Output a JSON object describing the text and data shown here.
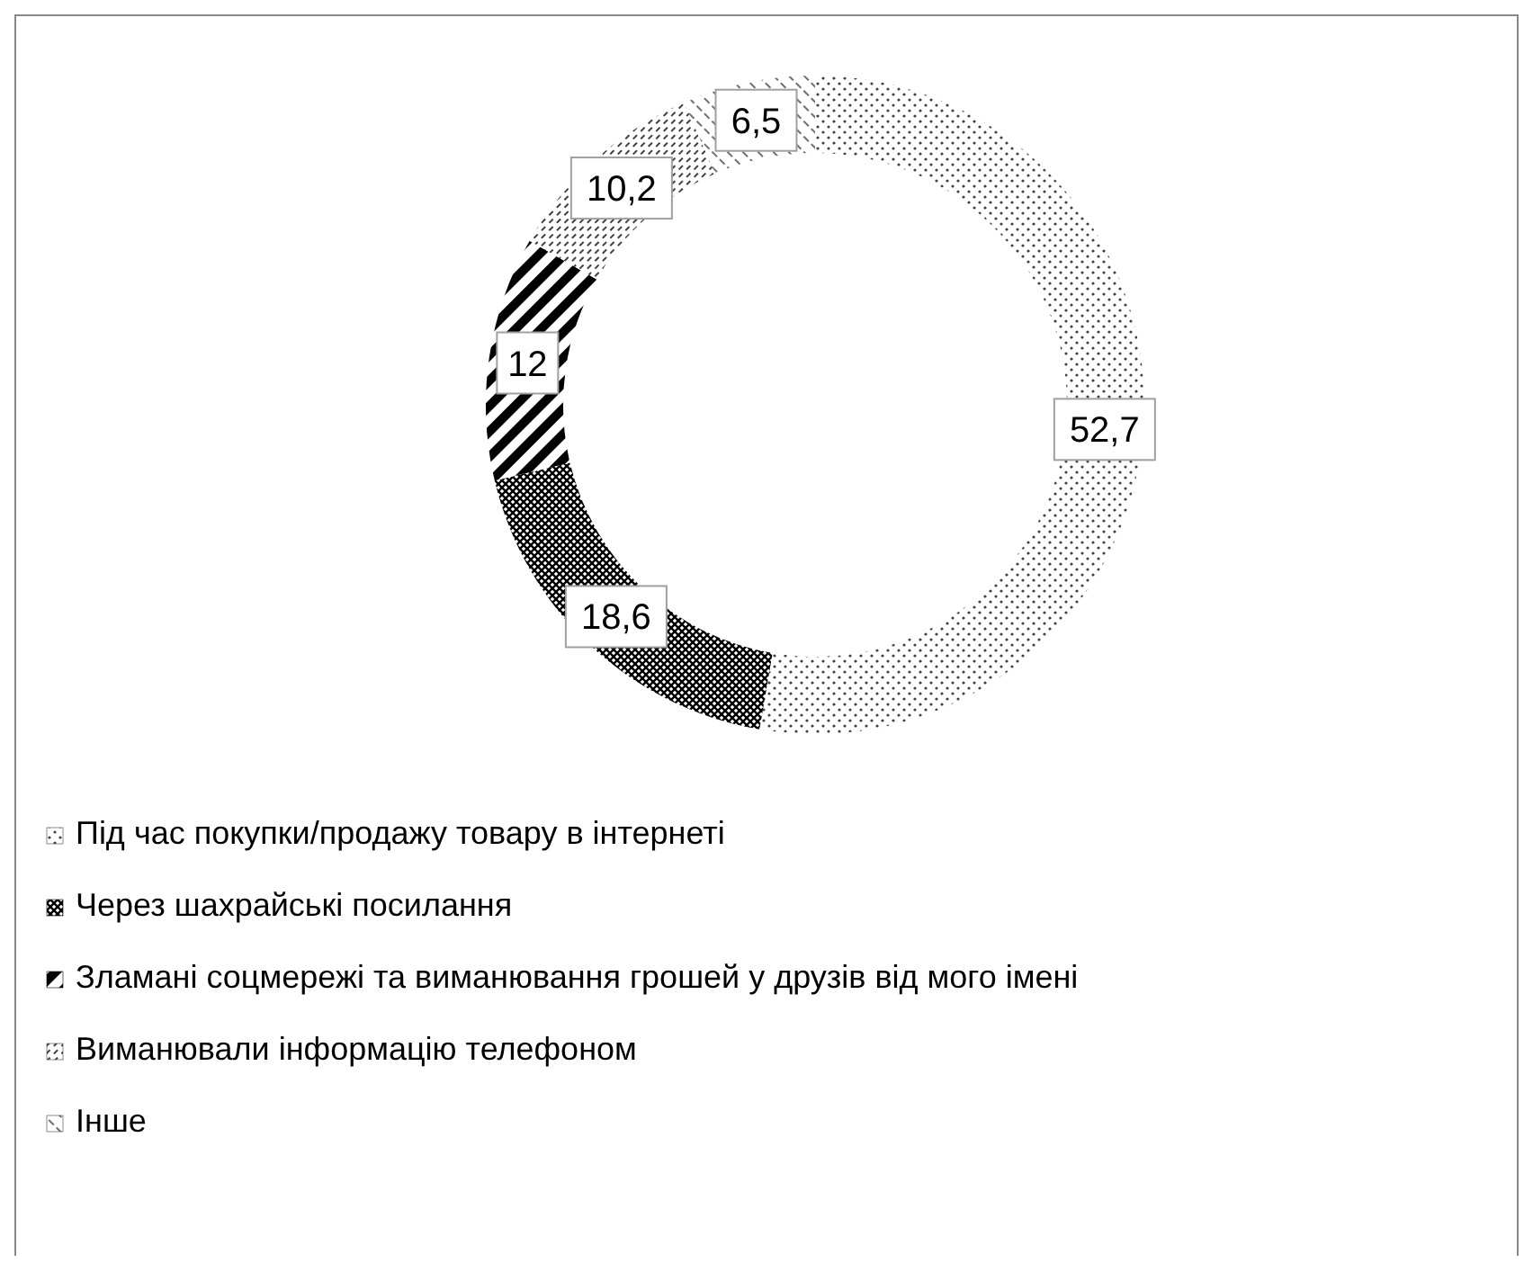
{
  "chart_data": {
    "type": "donut",
    "categories": [
      "Під час покупки/продажу товару в інтернеті",
      "Через шахрайські посилання",
      "Зламані соцмережі та виманювання грошей у друзів від мого імені",
      "Виманювали інформацію телефоном",
      "Інше"
    ],
    "values": [
      52.7,
      18.6,
      12,
      10.2,
      6.5
    ],
    "value_labels": [
      "52,7",
      "18,6",
      "12",
      "10,2",
      "6,5"
    ],
    "colors": [
      "#404040",
      "#000000",
      "#000000",
      "#404040",
      "#404040"
    ],
    "legend": "bottom"
  }
}
